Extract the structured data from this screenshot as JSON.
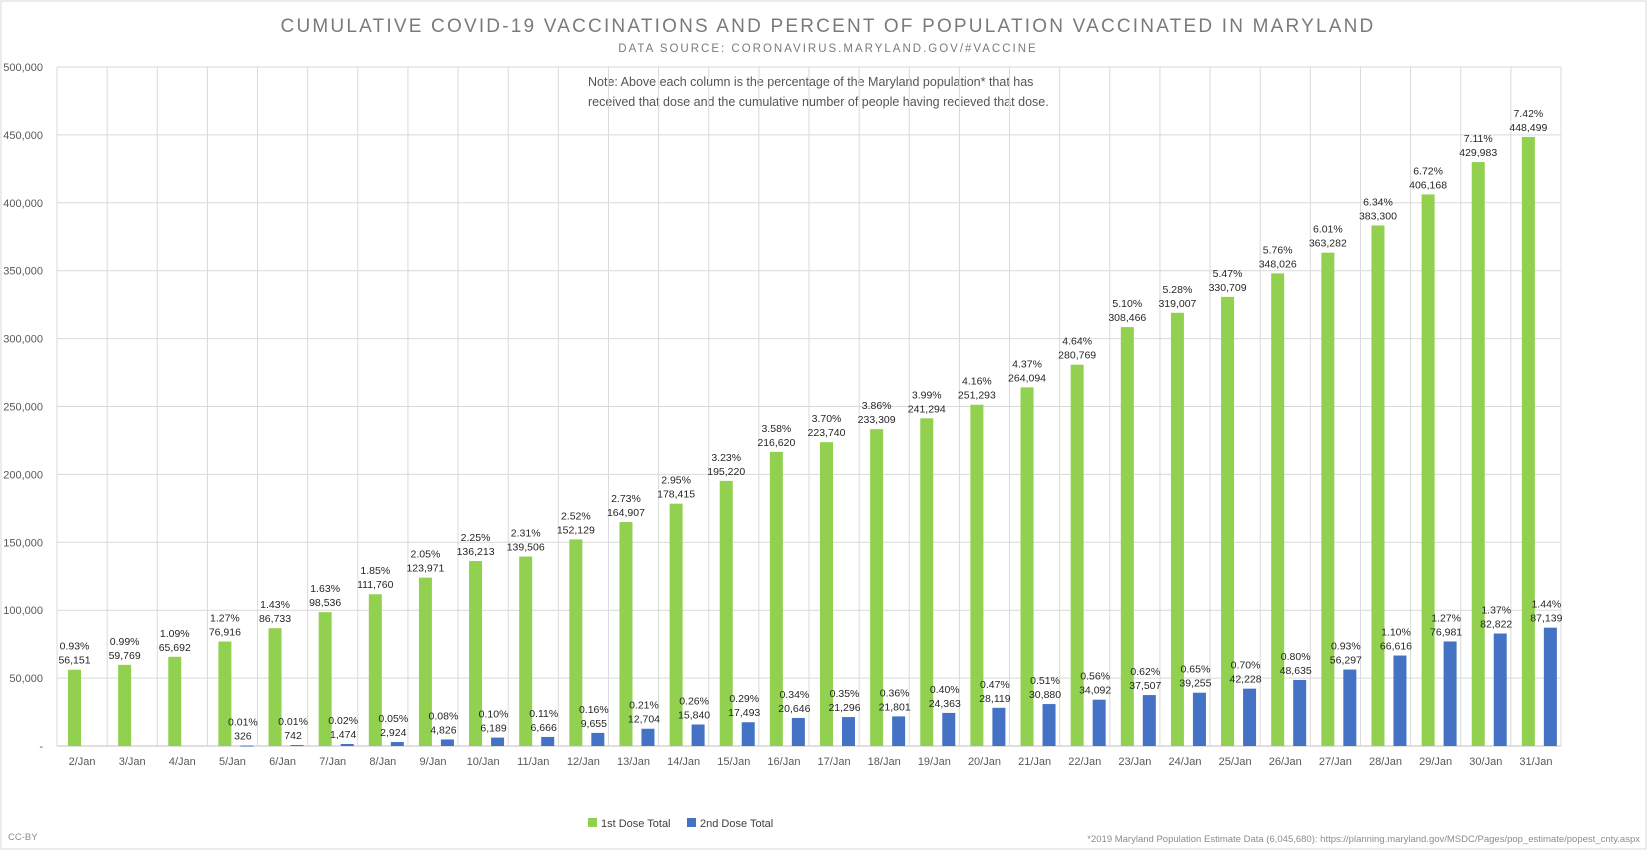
{
  "chart_data": {
    "type": "bar",
    "title": "CUMULATIVE COVID-19 VACCINATIONS AND PERCENT OF POPULATION VACCINATED IN MARYLAND",
    "subtitle": "DATA SOURCE: CORONAVIRUS.MARYLAND.GOV/#VACCINE",
    "note_lines": [
      "Note: Above each column is the percentage of the Maryland population* that has",
      "received that dose and the cumulative number of people having recieved that dose."
    ],
    "footer_left": "CC-BY",
    "footer_right": "*2019 Maryland Population Estimate Data (6,045,680): https://planning.maryland.gov/MSDC/Pages/pop_estimate/popest_cnty.aspx",
    "xlabel": "",
    "ylabel": "",
    "ylim": [
      0,
      500000
    ],
    "y_ticks": [
      "-",
      "50,000",
      "100,000",
      "150,000",
      "200,000",
      "250,000",
      "300,000",
      "350,000",
      "400,000",
      "450,000",
      "500,000"
    ],
    "grid": true,
    "legend_position": "bottom",
    "categories": [
      "2/Jan",
      "3/Jan",
      "4/Jan",
      "5/Jan",
      "6/Jan",
      "7/Jan",
      "8/Jan",
      "9/Jan",
      "10/Jan",
      "11/Jan",
      "12/Jan",
      "13/Jan",
      "14/Jan",
      "15/Jan",
      "16/Jan",
      "17/Jan",
      "18/Jan",
      "19/Jan",
      "20/Jan",
      "21/Jan",
      "22/Jan",
      "23/Jan",
      "24/Jan",
      "25/Jan",
      "26/Jan",
      "27/Jan",
      "28/Jan",
      "29/Jan",
      "30/Jan",
      "31/Jan"
    ],
    "series": [
      {
        "name": "1st Dose Total",
        "color": "#92d050",
        "values": [
          56151,
          59769,
          65692,
          76916,
          86733,
          98536,
          111760,
          123971,
          136213,
          139506,
          152129,
          164907,
          178415,
          195220,
          216620,
          223740,
          233309,
          241294,
          251293,
          264094,
          280769,
          308466,
          319007,
          330709,
          348026,
          363282,
          383300,
          406168,
          429983,
          448499
        ],
        "value_labels": [
          "56,151",
          "59,769",
          "65,692",
          "76,916",
          "86,733",
          "98,536",
          "111,760",
          "123,971",
          "136,213",
          "139,506",
          "152,129",
          "164,907",
          "178,415",
          "195,220",
          "216,620",
          "223,740",
          "233,309",
          "241,294",
          "251,293",
          "264,094",
          "280,769",
          "308,466",
          "319,007",
          "330,709",
          "348,026",
          "363,282",
          "383,300",
          "406,168",
          "429,983",
          "448,499"
        ],
        "percent_labels": [
          "0.93%",
          "0.99%",
          "1.09%",
          "1.27%",
          "1.43%",
          "1.63%",
          "1.85%",
          "2.05%",
          "2.25%",
          "2.31%",
          "2.52%",
          "2.73%",
          "2.95%",
          "3.23%",
          "3.58%",
          "3.70%",
          "3.86%",
          "3.99%",
          "4.16%",
          "4.37%",
          "4.64%",
          "5.10%",
          "5.28%",
          "5.47%",
          "5.76%",
          "6.01%",
          "6.34%",
          "6.72%",
          "7.11%",
          "7.42%"
        ]
      },
      {
        "name": "2nd Dose Total",
        "color": "#4472c4",
        "values": [
          null,
          null,
          null,
          326,
          742,
          1474,
          2924,
          4826,
          6189,
          6666,
          9655,
          12704,
          15840,
          17493,
          20646,
          21296,
          21801,
          24363,
          28119,
          30880,
          34092,
          37507,
          39255,
          42228,
          48635,
          56297,
          66616,
          76981,
          82822,
          87139
        ],
        "value_labels": [
          "",
          "",
          "",
          "326",
          "742",
          "1,474",
          "2,924",
          "4,826",
          "6,189",
          "6,666",
          "9,655",
          "12,704",
          "15,840",
          "17,493",
          "20,646",
          "21,296",
          "21,801",
          "24,363",
          "28,119",
          "30,880",
          "34,092",
          "37,507",
          "39,255",
          "42,228",
          "48,635",
          "56,297",
          "66,616",
          "76,981",
          "82,822",
          "87,139"
        ],
        "percent_labels": [
          "",
          "",
          "",
          "0.01%",
          "0.01%",
          "0.02%",
          "0.05%",
          "0.08%",
          "0.10%",
          "0.11%",
          "0.16%",
          "0.21%",
          "0.26%",
          "0.29%",
          "0.34%",
          "0.35%",
          "0.36%",
          "0.40%",
          "0.47%",
          "0.51%",
          "0.56%",
          "0.62%",
          "0.65%",
          "0.70%",
          "0.80%",
          "0.93%",
          "1.10%",
          "1.27%",
          "1.37%",
          "1.44%"
        ]
      }
    ]
  }
}
